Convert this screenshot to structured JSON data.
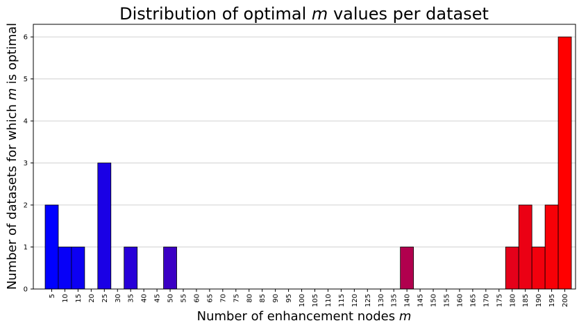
{
  "chart_data": {
    "type": "bar",
    "title": "Distribution of optimal m values per dataset",
    "title_parts": [
      "Distribution of optimal ",
      "m",
      " values per dataset"
    ],
    "xlabel": "Number of enhancement nodes m",
    "xlabel_parts": [
      "Number of enhancement nodes ",
      "m"
    ],
    "ylabel": "Number of datasets for which m is optimal",
    "ylabel_parts": [
      "Number of datasets for which ",
      "m",
      " is optimal"
    ],
    "categories": [
      "5",
      "10",
      "15",
      "20",
      "25",
      "30",
      "35",
      "40",
      "45",
      "50",
      "55",
      "60",
      "65",
      "70",
      "75",
      "80",
      "85",
      "90",
      "95",
      "100",
      "105",
      "110",
      "115",
      "120",
      "125",
      "130",
      "135",
      "140",
      "145",
      "150",
      "155",
      "160",
      "165",
      "170",
      "175",
      "180",
      "185",
      "190",
      "195",
      "200"
    ],
    "values": [
      2,
      1,
      1,
      0,
      3,
      0,
      1,
      0,
      0,
      1,
      0,
      0,
      0,
      0,
      0,
      0,
      0,
      0,
      0,
      0,
      0,
      0,
      0,
      0,
      0,
      0,
      0,
      1,
      0,
      0,
      0,
      0,
      0,
      0,
      0,
      1,
      2,
      1,
      2,
      6
    ],
    "ylim": [
      0,
      6.3
    ],
    "yticks": [
      0,
      1,
      2,
      3,
      4,
      5,
      6
    ],
    "grid": "horizontal",
    "color_low": "#0000ff",
    "color_high": "#ff0000",
    "bar_edge_color": "#000000",
    "grid_color": "#d0d0d0"
  }
}
